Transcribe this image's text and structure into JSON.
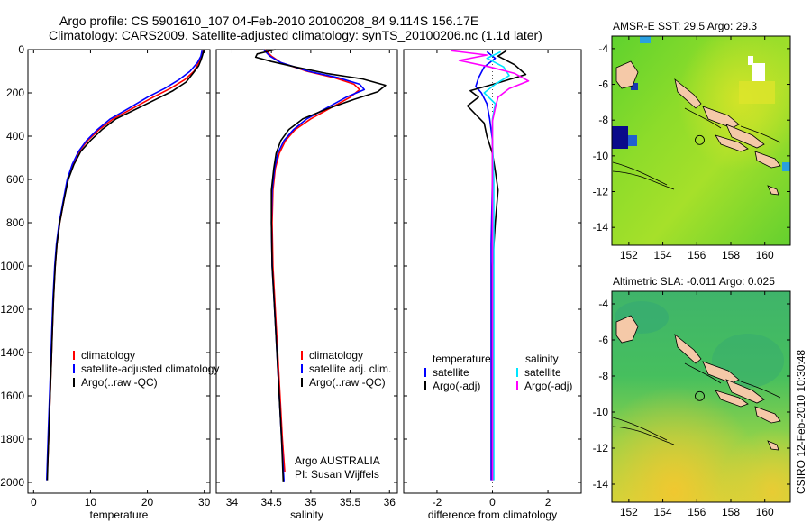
{
  "header": {
    "line1": "Argo profile: CS 5901610_107 04-Feb-2010 20100208_84 9.114S 156.17E",
    "line2": "Climatology: CARS2009. Satellite-adjusted climatology: synTS_20100206.nc (1.1d later)"
  },
  "colors": {
    "climatology": "#ff0000",
    "satellite": "#0000ff",
    "argo": "#000000",
    "salinity_satellite": "#00e5ff",
    "salinity_argo": "#ff00ff",
    "island": "#f5c9a8"
  },
  "depth_axis": {
    "range": [
      0,
      2050
    ],
    "ticks": [
      "0",
      "200",
      "400",
      "600",
      "800",
      "1000",
      "1200",
      "1400",
      "1600",
      "1800",
      "2000"
    ]
  },
  "chart_data": [
    {
      "type": "line",
      "xlabel": "temperature",
      "xlim": [
        -1,
        31
      ],
      "ylim": [
        0,
        2050
      ],
      "yaxis": "depth (increasing downward)",
      "xticks": [
        "0",
        "10",
        "20",
        "30"
      ],
      "legend": [
        "climatology",
        "satellite-adjusted climatology",
        "Argo(..raw -QC)"
      ],
      "series": [
        {
          "name": "climatology",
          "color": "#ff0000",
          "points": [
            [
              29.8,
              5
            ],
            [
              29.5,
              30
            ],
            [
              29,
              60
            ],
            [
              28.2,
              100
            ],
            [
              26.5,
              140
            ],
            [
              24,
              180
            ],
            [
              21,
              220
            ],
            [
              17.5,
              270
            ],
            [
              14,
              320
            ],
            [
              11.5,
              370
            ],
            [
              9.5,
              420
            ],
            [
              8,
              470
            ],
            [
              6.9,
              530
            ],
            [
              6,
              600
            ],
            [
              5.3,
              700
            ],
            [
              4.6,
              800
            ],
            [
              4.1,
              900
            ],
            [
              3.8,
              1000
            ],
            [
              3.5,
              1150
            ],
            [
              3.3,
              1300
            ],
            [
              3.1,
              1450
            ],
            [
              2.9,
              1600
            ],
            [
              2.7,
              1750
            ],
            [
              2.5,
              1900
            ],
            [
              2.4,
              1950
            ]
          ]
        },
        {
          "name": "satellite-adjusted climatology",
          "color": "#0000ff",
          "points": [
            [
              29.6,
              5
            ],
            [
              29.4,
              30
            ],
            [
              28.8,
              60
            ],
            [
              27.5,
              100
            ],
            [
              25.5,
              140
            ],
            [
              23,
              180
            ],
            [
              20,
              220
            ],
            [
              16.8,
              270
            ],
            [
              13.5,
              320
            ],
            [
              11.2,
              370
            ],
            [
              9.3,
              420
            ],
            [
              7.9,
              470
            ],
            [
              6.8,
              530
            ],
            [
              5.9,
              600
            ],
            [
              5.2,
              700
            ],
            [
              4.5,
              800
            ],
            [
              4.0,
              900
            ],
            [
              3.7,
              1000
            ],
            [
              3.4,
              1150
            ],
            [
              3.2,
              1300
            ],
            [
              3.0,
              1450
            ],
            [
              2.8,
              1600
            ],
            [
              2.6,
              1750
            ],
            [
              2.4,
              1900
            ],
            [
              2.3,
              1990
            ]
          ]
        },
        {
          "name": "Argo(..raw -QC)",
          "color": "#000000",
          "points": [
            [
              29.9,
              5
            ],
            [
              29.7,
              25
            ],
            [
              29.4,
              50
            ],
            [
              29,
              75
            ],
            [
              28,
              110
            ],
            [
              26.8,
              150
            ],
            [
              24.5,
              190
            ],
            [
              21.5,
              230
            ],
            [
              18,
              275
            ],
            [
              14.5,
              320
            ],
            [
              12,
              370
            ],
            [
              10,
              420
            ],
            [
              8.3,
              470
            ],
            [
              7.1,
              530
            ],
            [
              6.1,
              600
            ],
            [
              5.3,
              700
            ],
            [
              4.6,
              800
            ],
            [
              4.1,
              900
            ],
            [
              3.8,
              1000
            ],
            [
              3.5,
              1150
            ],
            [
              3.3,
              1300
            ],
            [
              3.1,
              1450
            ],
            [
              2.9,
              1600
            ],
            [
              2.7,
              1750
            ],
            [
              2.5,
              1900
            ],
            [
              2.4,
              1990
            ]
          ]
        }
      ]
    },
    {
      "type": "line",
      "xlabel": "salinity",
      "xlim": [
        33.8,
        36.1
      ],
      "ylim": [
        0,
        2050
      ],
      "xticks": [
        "34",
        "34.5",
        "35",
        "35.5",
        "36"
      ],
      "legend": [
        "climatology",
        "satellite adj. clim.",
        "Argo(..raw -QC)"
      ],
      "annotation": [
        "Argo AUSTRALIA",
        "PI: Susan Wijffels"
      ],
      "series": [
        {
          "name": "climatology",
          "color": "#ff0000",
          "points": [
            [
              34.42,
              0
            ],
            [
              34.5,
              30
            ],
            [
              34.62,
              60
            ],
            [
              34.95,
              100
            ],
            [
              35.3,
              130
            ],
            [
              35.55,
              160
            ],
            [
              35.62,
              185
            ],
            [
              35.5,
              220
            ],
            [
              35.25,
              270
            ],
            [
              35.0,
              320
            ],
            [
              34.8,
              370
            ],
            [
              34.68,
              420
            ],
            [
              34.6,
              480
            ],
            [
              34.55,
              550
            ],
            [
              34.52,
              650
            ],
            [
              34.51,
              800
            ],
            [
              34.52,
              1000
            ],
            [
              34.55,
              1200
            ],
            [
              34.58,
              1400
            ],
            [
              34.61,
              1600
            ],
            [
              34.64,
              1800
            ],
            [
              34.67,
              1950
            ]
          ]
        },
        {
          "name": "satellite adj. clim.",
          "color": "#0000ff",
          "points": [
            [
              34.4,
              0
            ],
            [
              34.48,
              30
            ],
            [
              34.62,
              60
            ],
            [
              34.97,
              100
            ],
            [
              35.35,
              130
            ],
            [
              35.62,
              160
            ],
            [
              35.68,
              185
            ],
            [
              35.45,
              220
            ],
            [
              35.2,
              270
            ],
            [
              34.95,
              320
            ],
            [
              34.78,
              370
            ],
            [
              34.66,
              420
            ],
            [
              34.58,
              480
            ],
            [
              34.54,
              550
            ],
            [
              34.51,
              650
            ],
            [
              34.5,
              800
            ],
            [
              34.51,
              1000
            ],
            [
              34.54,
              1200
            ],
            [
              34.57,
              1400
            ],
            [
              34.6,
              1600
            ],
            [
              34.63,
              1800
            ],
            [
              34.66,
              1995
            ]
          ]
        },
        {
          "name": "Argo(..raw -QC)",
          "color": "#000000",
          "points": [
            [
              34.55,
              0
            ],
            [
              34.32,
              20
            ],
            [
              34.3,
              35
            ],
            [
              34.5,
              55
            ],
            [
              34.8,
              80
            ],
            [
              35.2,
              110
            ],
            [
              35.65,
              135
            ],
            [
              35.95,
              165
            ],
            [
              35.85,
              195
            ],
            [
              35.55,
              230
            ],
            [
              35.2,
              275
            ],
            [
              34.9,
              320
            ],
            [
              34.72,
              370
            ],
            [
              34.62,
              420
            ],
            [
              34.56,
              480
            ],
            [
              34.53,
              550
            ],
            [
              34.5,
              650
            ],
            [
              34.5,
              800
            ],
            [
              34.51,
              1000
            ],
            [
              34.54,
              1200
            ],
            [
              34.57,
              1400
            ],
            [
              34.6,
              1600
            ],
            [
              34.63,
              1800
            ],
            [
              34.65,
              1995
            ]
          ]
        }
      ]
    },
    {
      "type": "line",
      "xlabel": "difference from climatology",
      "xlim": [
        -3.2,
        3.2
      ],
      "ylim": [
        0,
        2050
      ],
      "xticks": [
        "-2",
        "0",
        "2"
      ],
      "legend_left_title": "temperature",
      "legend_right_title": "salinity",
      "legend": [
        "satellite",
        "Argo(-adj)",
        "satellite",
        "Argo(-adj)"
      ],
      "series": [
        {
          "name": "temperature satellite",
          "color": "#0000ff",
          "points": [
            [
              -0.2,
              10
            ],
            [
              0.1,
              40
            ],
            [
              -0.3,
              80
            ],
            [
              -0.5,
              130
            ],
            [
              -0.6,
              170
            ],
            [
              -0.4,
              200
            ],
            [
              -0.2,
              250
            ],
            [
              -0.1,
              320
            ],
            [
              0,
              420
            ],
            [
              0,
              600
            ],
            [
              -0.05,
              900
            ],
            [
              -0.05,
              1300
            ],
            [
              -0.05,
              1700
            ],
            [
              -0.05,
              1990
            ]
          ]
        },
        {
          "name": "temperature Argo(-adj)",
          "color": "#000000",
          "points": [
            [
              0.5,
              5
            ],
            [
              0.2,
              30
            ],
            [
              0.8,
              70
            ],
            [
              1.2,
              115
            ],
            [
              0.3,
              150
            ],
            [
              -0.8,
              190
            ],
            [
              -0.5,
              220
            ],
            [
              -0.9,
              260
            ],
            [
              -0.6,
              300
            ],
            [
              -0.3,
              340
            ],
            [
              -0.2,
              400
            ],
            [
              0,
              480
            ],
            [
              0.1,
              560
            ],
            [
              0.2,
              650
            ],
            [
              0.1,
              800
            ],
            [
              0,
              1000
            ],
            [
              0,
              1300
            ],
            [
              0,
              1600
            ],
            [
              0,
              1990
            ]
          ]
        },
        {
          "name": "salinity satellite",
          "color": "#00e5ff",
          "points": [
            [
              0.3,
              10
            ],
            [
              -0.2,
              40
            ],
            [
              0.4,
              80
            ],
            [
              0.6,
              120
            ],
            [
              0.1,
              160
            ],
            [
              -0.3,
              200
            ],
            [
              0.1,
              250
            ],
            [
              0,
              320
            ],
            [
              0,
              420
            ],
            [
              0.05,
              600
            ],
            [
              0.05,
              900
            ],
            [
              0.05,
              1300
            ],
            [
              0.05,
              1700
            ],
            [
              0.05,
              1990
            ]
          ]
        },
        {
          "name": "salinity Argo(-adj)",
          "color": "#ff00ff",
          "points": [
            [
              -1.5,
              5
            ],
            [
              -0.2,
              25
            ],
            [
              -1.2,
              50
            ],
            [
              -0.1,
              80
            ],
            [
              0.8,
              110
            ],
            [
              1.3,
              145
            ],
            [
              0.6,
              180
            ],
            [
              0.2,
              220
            ],
            [
              0.1,
              270
            ],
            [
              0,
              330
            ],
            [
              0,
              450
            ],
            [
              0,
              600
            ],
            [
              0,
              900
            ],
            [
              0,
              1300
            ],
            [
              0,
              1700
            ],
            [
              0,
              1990
            ]
          ]
        }
      ]
    },
    {
      "type": "heatmap",
      "title": "AMSR-E SST: 29.5 Argo: 29.3",
      "xlim": [
        151,
        161.5
      ],
      "ylim": [
        -15,
        -3.3
      ],
      "xticks": [
        "152",
        "154",
        "156",
        "158",
        "160"
      ],
      "yticks": [
        "-4",
        "-6",
        "-8",
        "-10",
        "-12",
        "-14"
      ],
      "marker": {
        "lon": 156.17,
        "lat": -9.114
      }
    },
    {
      "type": "heatmap",
      "title": "Altimetric SLA: -0.011 Argo: 0.025",
      "xlim": [
        151,
        161.5
      ],
      "ylim": [
        -15,
        -3.3
      ],
      "xticks": [
        "152",
        "154",
        "156",
        "158",
        "160"
      ],
      "yticks": [
        "-4",
        "-6",
        "-8",
        "-10",
        "-12",
        "-14"
      ],
      "marker": {
        "lon": 156.17,
        "lat": -9.114
      },
      "side_label": "CSIRO 12-Feb-2010 10:30:48"
    }
  ]
}
